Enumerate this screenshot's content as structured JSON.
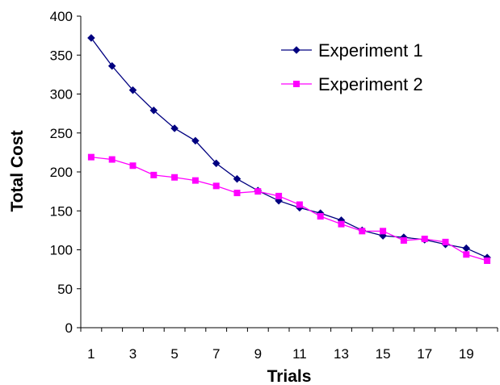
{
  "chart_data": {
    "type": "line",
    "title": "",
    "xlabel": "Trials",
    "ylabel": "Total Cost",
    "x": [
      1,
      2,
      3,
      4,
      5,
      6,
      7,
      8,
      9,
      10,
      11,
      12,
      13,
      14,
      15,
      16,
      17,
      18,
      19,
      20
    ],
    "x_tick_labels": [
      "1",
      "3",
      "5",
      "7",
      "9",
      "11",
      "13",
      "15",
      "17",
      "19"
    ],
    "ylim": [
      0,
      400
    ],
    "y_ticks": [
      0,
      50,
      100,
      150,
      200,
      250,
      300,
      350,
      400
    ],
    "grid": false,
    "legend_position": "top-right",
    "series": [
      {
        "name": "Experiment 1",
        "color": "#000080",
        "marker": "diamond",
        "values": [
          372,
          336,
          305,
          279,
          256,
          240,
          211,
          191,
          176,
          163,
          154,
          147,
          138,
          125,
          118,
          116,
          113,
          107,
          102,
          90
        ]
      },
      {
        "name": "Experiment 2",
        "color": "#FF00FF",
        "marker": "square",
        "values": [
          219,
          216,
          208,
          196,
          193,
          189,
          182,
          173,
          175,
          169,
          158,
          143,
          133,
          124,
          124,
          112,
          114,
          110,
          94,
          86
        ]
      }
    ]
  }
}
